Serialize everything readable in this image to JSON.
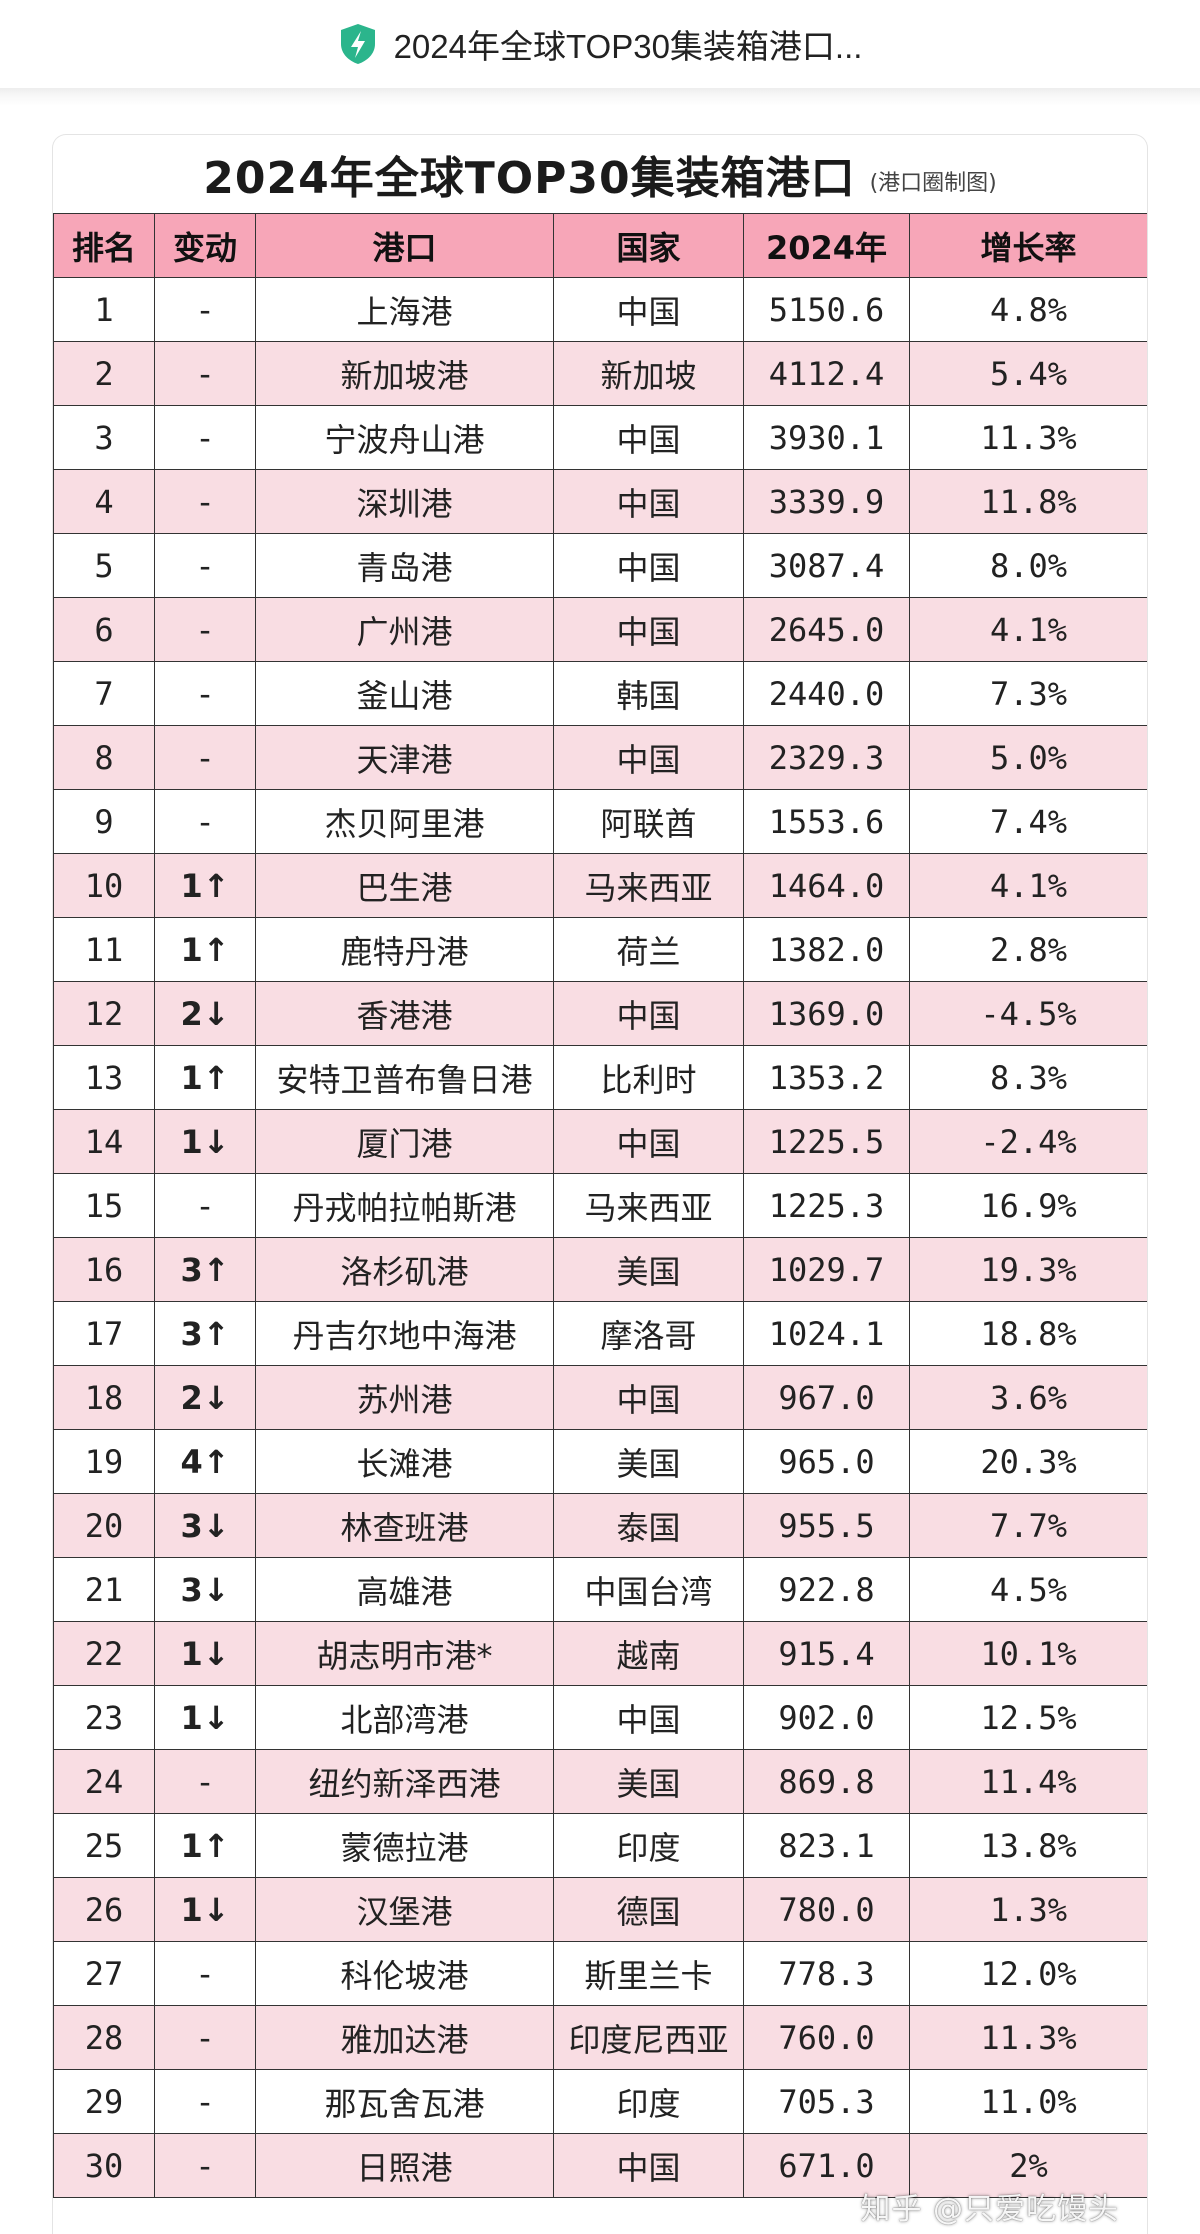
{
  "topbar": {
    "title": "2024年全球TOP30集装箱港口...",
    "icon": "shield-lightning-icon",
    "icon_color": "#2bb58c"
  },
  "card": {
    "title": "2024年全球TOP30集装箱港口",
    "subtitle": "(港口圈制图)"
  },
  "table": {
    "headers": [
      "排名",
      "变动",
      "港口",
      "国家",
      "2024年",
      "增长率"
    ],
    "rows": [
      {
        "rank": "1",
        "change": "-",
        "port": "上海港",
        "country": "中国",
        "value": "5150.6",
        "growth": "4.8%"
      },
      {
        "rank": "2",
        "change": "-",
        "port": "新加坡港",
        "country": "新加坡",
        "value": "4112.4",
        "growth": "5.4%"
      },
      {
        "rank": "3",
        "change": "-",
        "port": "宁波舟山港",
        "country": "中国",
        "value": "3930.1",
        "growth": "11.3%"
      },
      {
        "rank": "4",
        "change": "-",
        "port": "深圳港",
        "country": "中国",
        "value": "3339.9",
        "growth": "11.8%"
      },
      {
        "rank": "5",
        "change": "-",
        "port": "青岛港",
        "country": "中国",
        "value": "3087.4",
        "growth": "8.0%"
      },
      {
        "rank": "6",
        "change": "-",
        "port": "广州港",
        "country": "中国",
        "value": "2645.0",
        "growth": "4.1%"
      },
      {
        "rank": "7",
        "change": "-",
        "port": "釜山港",
        "country": "韩国",
        "value": "2440.0",
        "growth": "7.3%"
      },
      {
        "rank": "8",
        "change": "-",
        "port": "天津港",
        "country": "中国",
        "value": "2329.3",
        "growth": "5.0%"
      },
      {
        "rank": "9",
        "change": "-",
        "port": "杰贝阿里港",
        "country": "阿联酋",
        "value": "1553.6",
        "growth": "7.4%"
      },
      {
        "rank": "10",
        "change": "1↑",
        "port": "巴生港",
        "country": "马来西亚",
        "value": "1464.0",
        "growth": "4.1%"
      },
      {
        "rank": "11",
        "change": "1↑",
        "port": "鹿特丹港",
        "country": "荷兰",
        "value": "1382.0",
        "growth": "2.8%"
      },
      {
        "rank": "12",
        "change": "2↓",
        "port": "香港港",
        "country": "中国",
        "value": "1369.0",
        "growth": "-4.5%"
      },
      {
        "rank": "13",
        "change": "1↑",
        "port": "安特卫普布鲁日港",
        "country": "比利时",
        "value": "1353.2",
        "growth": "8.3%"
      },
      {
        "rank": "14",
        "change": "1↓",
        "port": "厦门港",
        "country": "中国",
        "value": "1225.5",
        "growth": "-2.4%"
      },
      {
        "rank": "15",
        "change": "-",
        "port": "丹戎帕拉帕斯港",
        "country": "马来西亚",
        "value": "1225.3",
        "growth": "16.9%"
      },
      {
        "rank": "16",
        "change": "3↑",
        "port": "洛杉矶港",
        "country": "美国",
        "value": "1029.7",
        "growth": "19.3%"
      },
      {
        "rank": "17",
        "change": "3↑",
        "port": "丹吉尔地中海港",
        "country": "摩洛哥",
        "value": "1024.1",
        "growth": "18.8%"
      },
      {
        "rank": "18",
        "change": "2↓",
        "port": "苏州港",
        "country": "中国",
        "value": "967.0",
        "growth": "3.6%"
      },
      {
        "rank": "19",
        "change": "4↑",
        "port": "长滩港",
        "country": "美国",
        "value": "965.0",
        "growth": "20.3%"
      },
      {
        "rank": "20",
        "change": "3↓",
        "port": "林查班港",
        "country": "泰国",
        "value": "955.5",
        "growth": "7.7%"
      },
      {
        "rank": "21",
        "change": "3↓",
        "port": "高雄港",
        "country": "中国台湾",
        "value": "922.8",
        "growth": "4.5%"
      },
      {
        "rank": "22",
        "change": "1↓",
        "port": "胡志明市港*",
        "country": "越南",
        "value": "915.4",
        "growth": "10.1%"
      },
      {
        "rank": "23",
        "change": "1↓",
        "port": "北部湾港",
        "country": "中国",
        "value": "902.0",
        "growth": "12.5%"
      },
      {
        "rank": "24",
        "change": "-",
        "port": "纽约新泽西港",
        "country": "美国",
        "value": "869.8",
        "growth": "11.4%"
      },
      {
        "rank": "25",
        "change": "1↑",
        "port": "蒙德拉港",
        "country": "印度",
        "value": "823.1",
        "growth": "13.8%"
      },
      {
        "rank": "26",
        "change": "1↓",
        "port": "汉堡港",
        "country": "德国",
        "value": "780.0",
        "growth": "1.3%"
      },
      {
        "rank": "27",
        "change": "-",
        "port": "科伦坡港",
        "country": "斯里兰卡",
        "value": "778.3",
        "growth": "12.0%"
      },
      {
        "rank": "28",
        "change": "-",
        "port": "雅加达港",
        "country": "印度尼西亚",
        "value": "760.0",
        "growth": "11.3%"
      },
      {
        "rank": "29",
        "change": "-",
        "port": "那瓦舍瓦港",
        "country": "印度",
        "value": "705.3",
        "growth": "11.0%"
      },
      {
        "rank": "30",
        "change": "-",
        "port": "日照港",
        "country": "中国",
        "value": "671.0",
        "growth": "2%"
      }
    ]
  },
  "watermark": "知乎 @只爱吃馒头",
  "colors": {
    "header_bg": "#f7a6b8",
    "stripe_bg": "#f9dde3",
    "up": "#d9262e",
    "down": "#25a546"
  }
}
